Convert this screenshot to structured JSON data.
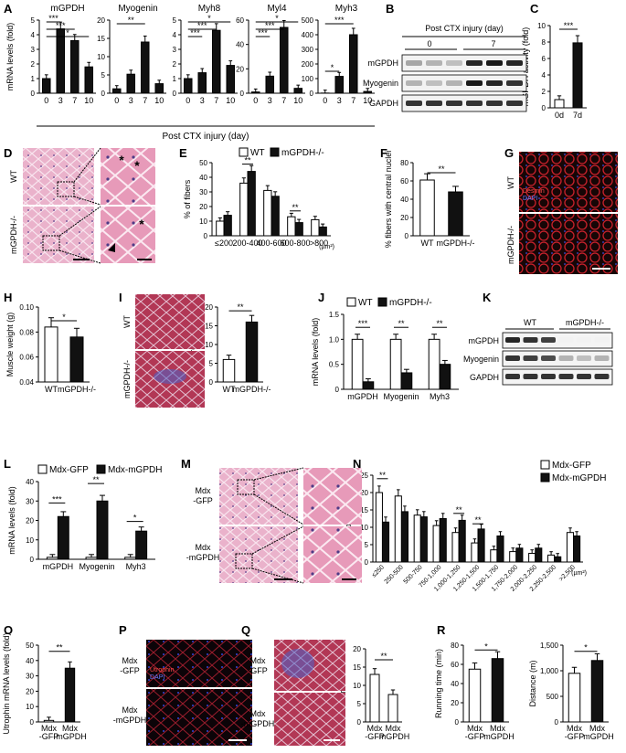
{
  "panels": [
    "A",
    "B",
    "C",
    "D",
    "E",
    "F",
    "G",
    "H",
    "I",
    "J",
    "K",
    "L",
    "M",
    "N",
    "O",
    "P",
    "Q",
    "R"
  ],
  "A": {
    "ylabel": "mRNA levels (fold)",
    "xlabel": "Post CTX injury (day)",
    "x": [
      "0",
      "3",
      "7",
      "10"
    ]
  },
  "B": {
    "header": "Post CTX injury (day)",
    "groups": [
      "0",
      "7"
    ],
    "rows": [
      "mGPDH",
      "Myogenin",
      "GAPDH"
    ]
  },
  "D": {
    "rows": [
      "WT",
      "mGPDH-/-"
    ]
  },
  "G": {
    "rows": [
      "WT",
      "mGPDH-/-"
    ],
    "stains": [
      "Desmin",
      "DAPI"
    ]
  },
  "I": {
    "rows": [
      "WT",
      "mGPDH-/-"
    ]
  },
  "K": {
    "groups": [
      "WT",
      "mGPDH-/-"
    ],
    "rows": [
      "mGPDH",
      "Myogenin",
      "GAPDH"
    ]
  },
  "M": {
    "rows": [
      "Mdx -GFP",
      "Mdx -mGPDH"
    ]
  },
  "P": {
    "rows": [
      "Mdx -GFP",
      "Mdx -mGPDH"
    ],
    "stains": [
      "Utrophin",
      "DAPI"
    ]
  },
  "Q": {
    "rows": [
      "Mdx -GFP",
      "Mdx -mGPDH"
    ]
  },
  "legends": {
    "WT_KO": [
      "WT",
      "mGPDH-/-"
    ],
    "Mdx": [
      "Mdx-GFP",
      "Mdx-mGPDH"
    ]
  },
  "units": {
    "area": "(µm²)"
  },
  "colors": {
    "white_bar": "#ffffff",
    "black_bar": "#111111",
    "he_pink": "#e8a9c4",
    "fluor_red": "#c0202a",
    "trichrome": "#a8304a"
  },
  "chart_data": [
    {
      "id": "A1",
      "type": "bar",
      "title": "mGPDH",
      "categories": [
        "0",
        "3",
        "7",
        "10"
      ],
      "values": [
        1.0,
        4.4,
        3.6,
        1.8
      ],
      "ylim": [
        0,
        5
      ],
      "yticks": [
        0,
        1,
        2,
        3,
        4,
        5
      ],
      "sig": [
        "***",
        "***",
        "*"
      ]
    },
    {
      "id": "A2",
      "type": "bar",
      "title": "Myogenin",
      "categories": [
        "0",
        "3",
        "7",
        "10"
      ],
      "values": [
        1.2,
        5.2,
        14,
        2.6
      ],
      "ylim": [
        0,
        20
      ],
      "yticks": [
        0,
        5,
        10,
        15,
        20
      ],
      "sig": [
        "**"
      ]
    },
    {
      "id": "A3",
      "type": "bar",
      "title": "Myh8",
      "categories": [
        "0",
        "3",
        "7",
        "10"
      ],
      "values": [
        1.0,
        1.4,
        4.3,
        1.9
      ],
      "ylim": [
        0,
        5
      ],
      "yticks": [
        0,
        1,
        2,
        3,
        4,
        5
      ],
      "sig": [
        "*",
        "***",
        "***"
      ]
    },
    {
      "id": "A4",
      "type": "bar",
      "title": "Myl4",
      "categories": [
        "0",
        "3",
        "7",
        "10"
      ],
      "values": [
        1.0,
        14,
        54,
        4
      ],
      "ylim": [
        0,
        60
      ],
      "yticks": [
        0,
        20,
        40,
        60
      ],
      "sig": [
        "*",
        "***",
        "***"
      ]
    },
    {
      "id": "A5",
      "type": "bar",
      "title": "Myh3",
      "categories": [
        "0",
        "3",
        "7",
        "10"
      ],
      "values": [
        1,
        115,
        400,
        12
      ],
      "ylim": [
        0,
        500
      ],
      "yticks": [
        0,
        100,
        200,
        300,
        400,
        500
      ],
      "sig": [
        "***",
        "*"
      ]
    },
    {
      "id": "C",
      "type": "bar",
      "ylabel": "mGPDH activity (fold)",
      "categories": [
        "0d",
        "7d"
      ],
      "values": [
        1.0,
        7.9
      ],
      "fills": [
        "white",
        "black"
      ],
      "ylim": [
        0,
        10
      ],
      "yticks": [
        0,
        2,
        4,
        6,
        8,
        10
      ],
      "sig": [
        "***"
      ]
    },
    {
      "id": "E",
      "type": "bar",
      "ylabel": "% of fibers",
      "unit": "(µm²)",
      "categories": [
        "≤200",
        "200-400",
        "400-600",
        "600-800",
        ">800"
      ],
      "series": [
        {
          "name": "WT",
          "values": [
            10,
            36,
            31,
            13,
            11
          ]
        },
        {
          "name": "mGPDH-/-",
          "values": [
            14,
            44,
            27,
            9,
            6
          ]
        }
      ],
      "ylim": [
        0,
        50
      ],
      "yticks": [
        0,
        10,
        20,
        30,
        40,
        50
      ],
      "sig": [
        "**",
        "**"
      ]
    },
    {
      "id": "F",
      "type": "bar",
      "ylabel": "% fibers with central nuclei",
      "categories": [
        "WT",
        "mGPDH-/-"
      ],
      "values": [
        61,
        48
      ],
      "fills": [
        "white",
        "black"
      ],
      "ylim": [
        0,
        80
      ],
      "yticks": [
        0,
        20,
        40,
        60,
        80
      ],
      "sig": [
        "**"
      ]
    },
    {
      "id": "H",
      "type": "bar",
      "ylabel": "Muscle weight (g)",
      "categories": [
        "WT",
        "mGPDH-/-"
      ],
      "values": [
        0.084,
        0.076
      ],
      "fills": [
        "white",
        "black"
      ],
      "ylim": [
        0.04,
        0.1
      ],
      "yticks": [
        "0.04",
        "0.06",
        "0.08",
        "0.10"
      ],
      "sig": [
        "*"
      ]
    },
    {
      "id": "I",
      "type": "bar",
      "ylabel": "% fibrotic area",
      "categories": [
        "WT",
        "mGPDH-/-"
      ],
      "values": [
        6,
        16
      ],
      "fills": [
        "white",
        "black"
      ],
      "ylim": [
        0,
        20
      ],
      "yticks": [
        0,
        5,
        10,
        15,
        20
      ],
      "sig": [
        "**"
      ]
    },
    {
      "id": "J",
      "type": "bar",
      "ylabel": "mRNA levels (fold)",
      "categories": [
        "mGPDH",
        "Myogenin",
        "Myh3"
      ],
      "series": [
        {
          "name": "WT",
          "values": [
            1,
            1,
            1
          ]
        },
        {
          "name": "mGPDH-/-",
          "values": [
            0.15,
            0.33,
            0.5
          ]
        }
      ],
      "ylim": [
        0,
        1.5
      ],
      "yticks": [
        "0",
        "0.5",
        "1.0",
        "1.5"
      ],
      "sig": [
        "***",
        "**",
        "**"
      ]
    },
    {
      "id": "L",
      "type": "bar",
      "ylabel": "mRNA levels (fold)",
      "categories": [
        "mGPDH",
        "Myogenin",
        "Myh3"
      ],
      "series": [
        {
          "name": "Mdx-GFP",
          "values": [
            1,
            1,
            1
          ]
        },
        {
          "name": "Mdx-mGPDH",
          "values": [
            22,
            30,
            14.5
          ]
        }
      ],
      "ylim": [
        0,
        40
      ],
      "yticks": [
        0,
        10,
        20,
        30,
        40
      ],
      "sig": [
        "***",
        "**",
        "*"
      ]
    },
    {
      "id": "N",
      "type": "bar",
      "ylabel": "% of fibers",
      "unit": "(µm²)",
      "categories": [
        "≤250",
        "250-500",
        "500-750",
        "750-1,000",
        "1,000-1,250",
        "1,250-1,500",
        "1,500-1,750",
        "1,750-2,000",
        "2,000-2,250",
        "2,250-2,500",
        ">2,500"
      ],
      "series": [
        {
          "name": "Mdx-GFP",
          "values": [
            20,
            19,
            13.5,
            10.5,
            8.5,
            5.5,
            3.5,
            3,
            2.5,
            2,
            8.5
          ]
        },
        {
          "name": "Mdx-mGPDH",
          "values": [
            11.5,
            14.5,
            13,
            12.5,
            12,
            9.5,
            7.5,
            4,
            4,
            1.5,
            7.5
          ]
        }
      ],
      "ylim": [
        0,
        25
      ],
      "yticks": [
        0,
        5,
        10,
        15,
        20,
        25
      ],
      "sig": [
        "**",
        "**",
        "**"
      ]
    },
    {
      "id": "O",
      "type": "bar",
      "ylabel": "Utrophin mRNA levels (fold)",
      "categories": [
        "Mdx -GFP",
        "Mdx -mGPDH"
      ],
      "values": [
        1,
        35
      ],
      "fills": [
        "white",
        "black"
      ],
      "ylim": [
        0,
        50
      ],
      "yticks": [
        0,
        10,
        20,
        30,
        40,
        50
      ],
      "sig": [
        "**"
      ]
    },
    {
      "id": "Q",
      "type": "bar",
      "ylabel": "% fibrotic area",
      "categories": [
        "Mdx -GFP",
        "Mdx -mGPDH"
      ],
      "values": [
        13,
        7.5
      ],
      "fills": [
        "white",
        "white"
      ],
      "ylim": [
        0,
        20
      ],
      "yticks": [
        0,
        5,
        10,
        15,
        20
      ],
      "sig": [
        "**"
      ]
    },
    {
      "id": "R1",
      "type": "bar",
      "ylabel": "Running time (min)",
      "categories": [
        "Mdx -GFP",
        "Mdx -mGPDH"
      ],
      "values": [
        55,
        66
      ],
      "fills": [
        "white",
        "black"
      ],
      "ylim": [
        0,
        80
      ],
      "yticks": [
        0,
        20,
        40,
        60,
        80
      ],
      "sig": [
        "*"
      ]
    },
    {
      "id": "R2",
      "type": "bar",
      "ylabel": "Distance (m)",
      "categories": [
        "Mdx -GFP",
        "Mdx -mGPDH"
      ],
      "values": [
        950,
        1200
      ],
      "fills": [
        "white",
        "black"
      ],
      "ylim": [
        0,
        1500
      ],
      "yticks": [
        "0",
        "500",
        "1,000",
        "1,500"
      ],
      "sig": [
        "*"
      ]
    }
  ]
}
